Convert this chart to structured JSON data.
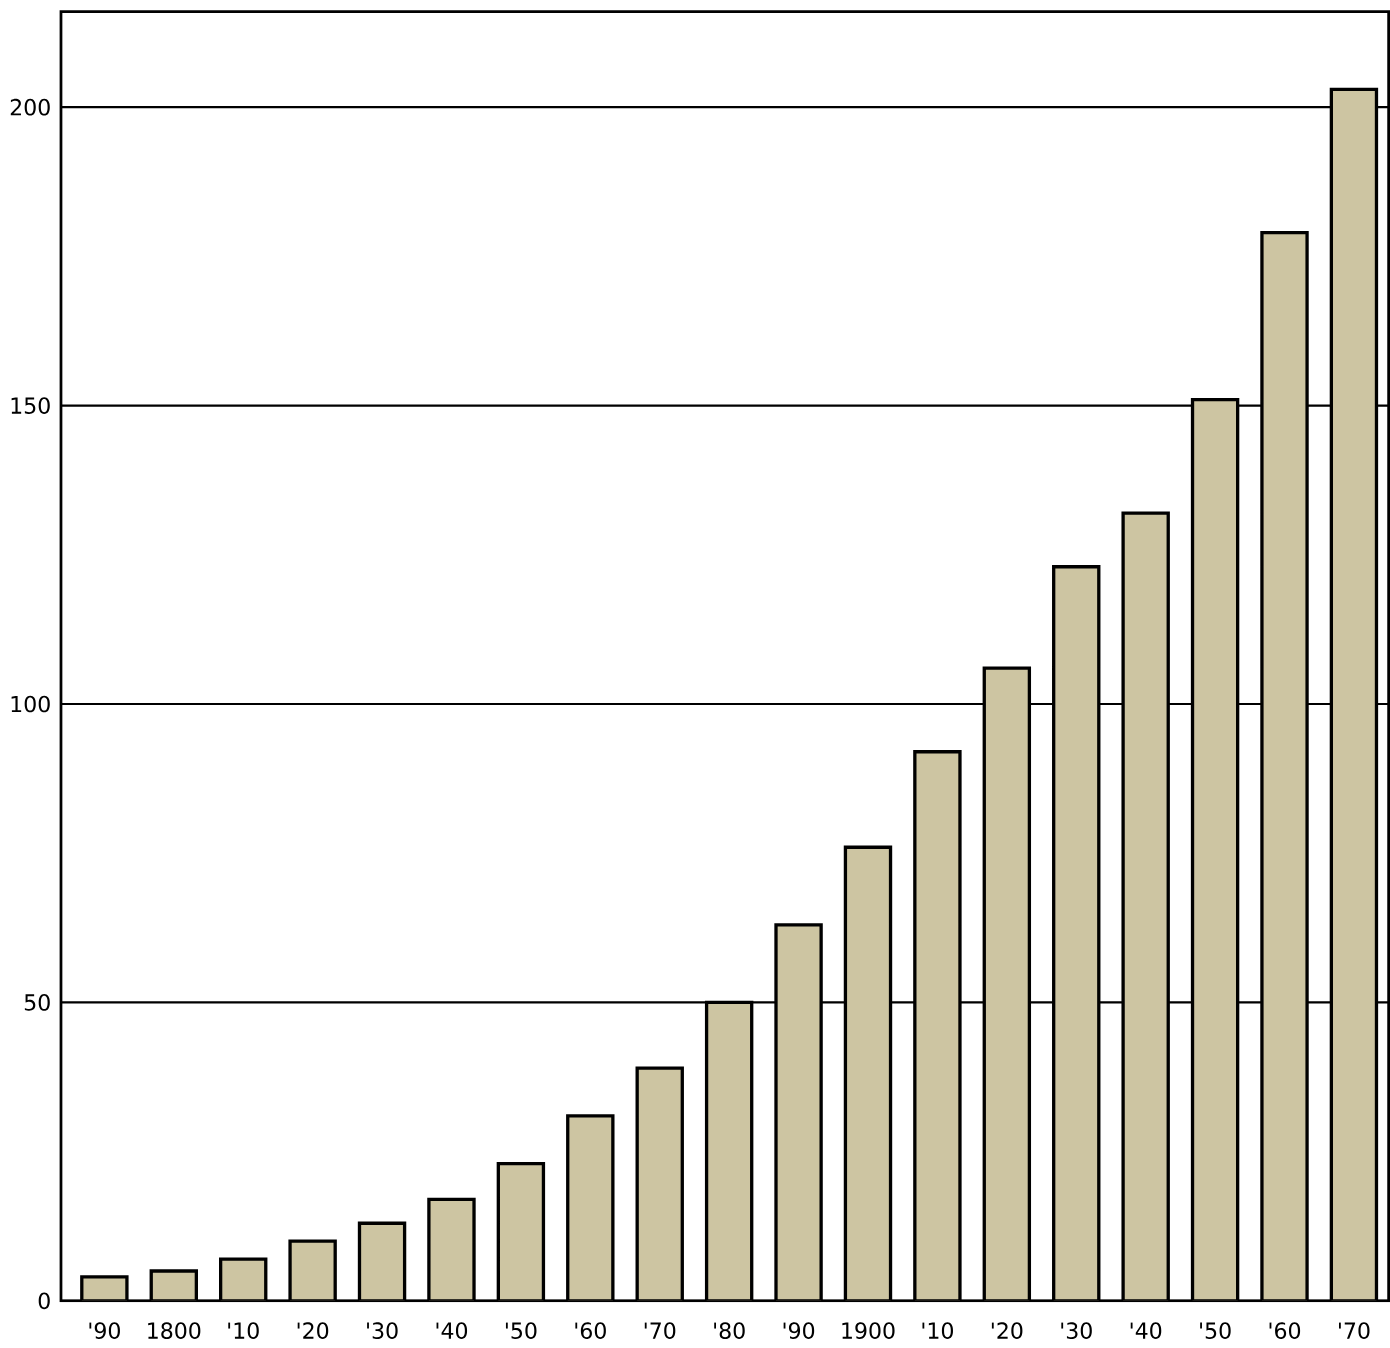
{
  "chart_data": {
    "type": "bar",
    "categories": [
      "'90",
      "1800",
      "'10",
      "'20",
      "'30",
      "'40",
      "'50",
      "'60",
      "'70",
      "'80",
      "'90",
      "1900",
      "'10",
      "'20",
      "'30",
      "'40",
      "'50",
      "'60",
      "'70"
    ],
    "values": [
      4,
      5,
      7,
      10,
      13,
      17,
      23,
      31,
      39,
      50,
      63,
      76,
      92,
      106,
      123,
      132,
      151,
      179,
      203
    ],
    "color": "#cdc5a2",
    "ylim": [
      0,
      216
    ],
    "yticks": [
      0,
      50,
      100,
      150,
      200
    ],
    "grid": "y"
  }
}
